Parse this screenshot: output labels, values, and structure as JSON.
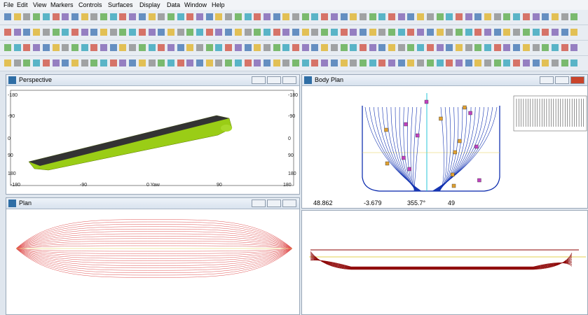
{
  "menu": [
    "File",
    "Edit",
    "View",
    "Markers",
    "Controls",
    "Surfaces",
    "Display",
    "Data",
    "Window",
    "Help"
  ],
  "windows": {
    "perspective": {
      "title": "Perspective",
      "yaw_ticks": [
        "-180",
        "-90",
        "0 Yaw",
        "90",
        "180"
      ],
      "pitch_ticks": [
        "-180",
        "-90",
        "0",
        "90",
        "180"
      ]
    },
    "body_plan": {
      "title": "Body Plan",
      "status": {
        "x": "48.862",
        "y": "-3.679",
        "angle": "355.7°",
        "zoom": "49"
      }
    },
    "plan": {
      "title": "Plan"
    }
  }
}
